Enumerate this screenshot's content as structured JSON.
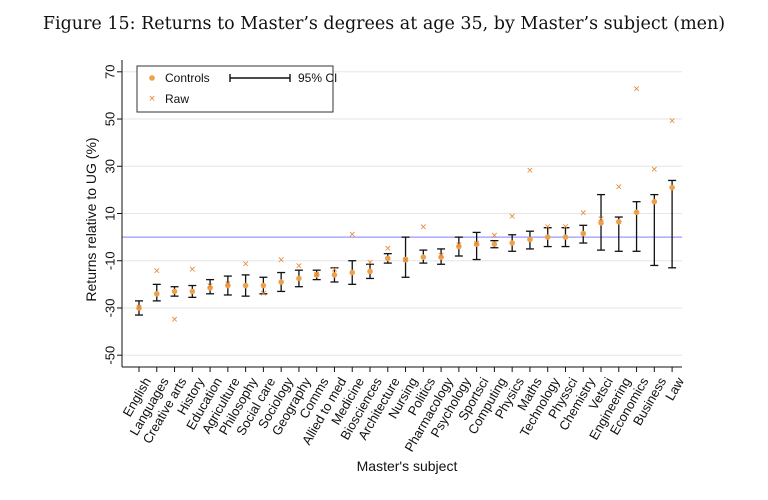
{
  "figure": {
    "title": "Figure 15: Returns to Master’s degrees at age 35, by Master’s subject (men)"
  },
  "chart_data": {
    "type": "scatter",
    "xlabel": "Master's subject",
    "ylabel": "Returns relative to UG (%)",
    "ylim": [
      -55,
      75
    ],
    "yticks": [
      70,
      50,
      30,
      10,
      -10,
      -30,
      -50
    ],
    "reference_line": 0,
    "grid": true,
    "legend_position": "top-left",
    "legend": {
      "controls": "Controls",
      "ci": "95% CI",
      "raw": "Raw"
    },
    "colors": {
      "controls": "#f0a04b",
      "raw": "#e8832a",
      "ci": "#111111",
      "reference": "#9999ff",
      "grid": "#e6e6e6"
    },
    "categories": [
      "English",
      "Languages",
      "Creative arts",
      "History",
      "Education",
      "Agriculture",
      "Philosophy",
      "Social care",
      "Sociology",
      "Geography",
      "Comms",
      "Allied to med",
      "Medicine",
      "Biosciences",
      "Architecture",
      "Nursing",
      "Politics",
      "Pharmacology",
      "Psychology",
      "Sportsci",
      "Computing",
      "Physics",
      "Maths",
      "Technology",
      "Physsci",
      "Chemistry",
      "Vetsci",
      "Engineering",
      "Economics",
      "Business",
      "Law"
    ],
    "series": [
      {
        "name": "Controls",
        "values": [
          -30,
          -24,
          -23,
          -23,
          -21.5,
          -20.5,
          -20.5,
          -20.5,
          -19,
          -17.5,
          -16,
          -16,
          -15,
          -14.5,
          -9,
          -9.5,
          -8.5,
          -8.5,
          -4,
          -3,
          -3,
          -2.5,
          -1,
          0,
          0,
          1.5,
          6,
          6.5,
          10.5,
          15,
          21
        ]
      },
      {
        "name": "Raw",
        "values": [
          -30,
          -14.5,
          -35,
          -14,
          -21,
          -20,
          -11.5,
          -24,
          -10,
          -12.5,
          -16,
          -14,
          1,
          -11,
          -5,
          -10,
          4,
          -8,
          -3.5,
          -3,
          0.5,
          8.5,
          28,
          4,
          4,
          10,
          7.5,
          21,
          62.5,
          28.5,
          49
        ]
      },
      {
        "name": "95% CI lower",
        "values": [
          -33,
          -27,
          -25,
          -25.5,
          -24,
          -24.5,
          -25,
          -24,
          -23,
          -21,
          -18,
          -19,
          -20,
          -17.5,
          -11,
          -17,
          -11,
          -11.5,
          -8,
          -9.5,
          -4.5,
          -6,
          -5,
          -4,
          -4,
          -2.5,
          -5.5,
          -6,
          -6,
          -12,
          -13
        ]
      },
      {
        "name": "95% CI upper",
        "values": [
          -27,
          -20,
          -21,
          -20.5,
          -18,
          -16.5,
          -16,
          -17,
          -15,
          -14,
          -14,
          -13,
          -10,
          -11.5,
          -7,
          0,
          -5.5,
          -5,
          0,
          2,
          -1.5,
          1,
          2.5,
          4,
          4,
          5,
          18,
          8.5,
          15,
          18,
          24
        ]
      }
    ]
  }
}
